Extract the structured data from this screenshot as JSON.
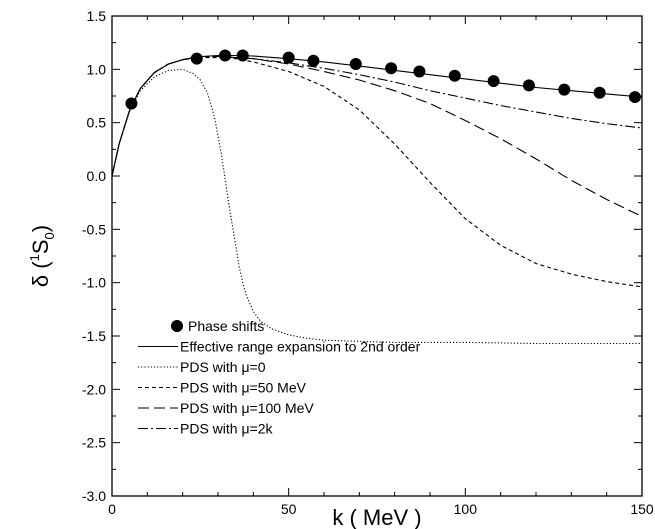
{
  "chart_data": {
    "type": "line",
    "xlabel": "k ( MeV )",
    "ylabel": {
      "main": "δ (",
      "sup": "1",
      "sym": "S",
      "sub": "0",
      "close": ")"
    },
    "xlim": [
      0,
      150
    ],
    "ylim": [
      -3.0,
      1.5
    ],
    "x_ticks": [
      0,
      50,
      100,
      150
    ],
    "x_tick_labels": [
      "0",
      "50",
      "100",
      "150"
    ],
    "y_ticks": [
      -3.0,
      -2.5,
      -2.0,
      -1.5,
      -1.0,
      -0.5,
      0.0,
      0.5,
      1.0,
      1.5
    ],
    "y_tick_labels": [
      "-3.0",
      "-2.5",
      "-2.0",
      "-1.5",
      "-1.0",
      "-0.5",
      "0.0",
      "0.5",
      "1.0",
      "1.5"
    ],
    "grid": false,
    "legend_position": "bottom-left",
    "series": [
      {
        "name": "Phase shifts",
        "kind": "markers",
        "x": [
          5.5,
          24,
          32,
          37,
          50,
          57,
          69,
          79,
          87,
          97,
          108,
          118,
          128,
          138,
          148
        ],
        "y": [
          0.68,
          1.1,
          1.13,
          1.13,
          1.11,
          1.08,
          1.05,
          1.01,
          0.98,
          0.94,
          0.89,
          0.85,
          0.81,
          0.78,
          0.74
        ]
      },
      {
        "name": "Effective range expansion to 2nd order",
        "kind": "line",
        "dash": "solid",
        "x": [
          0,
          2,
          5,
          8,
          12,
          16,
          20,
          25,
          30,
          35,
          40,
          50,
          60,
          70,
          80,
          90,
          100,
          110,
          120,
          130,
          140,
          150
        ],
        "y": [
          0.0,
          0.3,
          0.62,
          0.82,
          0.97,
          1.05,
          1.09,
          1.12,
          1.13,
          1.13,
          1.125,
          1.1,
          1.07,
          1.03,
          0.99,
          0.95,
          0.91,
          0.87,
          0.83,
          0.8,
          0.77,
          0.74
        ]
      },
      {
        "name": "PDS with μ=0",
        "kind": "line",
        "dash": "dotted",
        "x": [
          0,
          2,
          5,
          8,
          12,
          16,
          20,
          23,
          25,
          27,
          29,
          31,
          33,
          34,
          35,
          36,
          37,
          38,
          40,
          42,
          45,
          50,
          55,
          60,
          70,
          80,
          100,
          120,
          150
        ],
        "y": [
          0.0,
          0.3,
          0.61,
          0.8,
          0.93,
          0.99,
          1.0,
          0.96,
          0.9,
          0.78,
          0.55,
          0.2,
          -0.25,
          -0.45,
          -0.65,
          -0.85,
          -1.0,
          -1.12,
          -1.27,
          -1.36,
          -1.43,
          -1.49,
          -1.52,
          -1.54,
          -1.55,
          -1.56,
          -1.56,
          -1.57,
          -1.57
        ]
      },
      {
        "name": "PDS with μ=50 MeV",
        "kind": "line",
        "dash": "short-dash",
        "x": [
          0,
          2,
          5,
          8,
          12,
          16,
          20,
          25,
          30,
          35,
          40,
          50,
          60,
          70,
          80,
          90,
          100,
          110,
          120,
          130,
          140,
          150
        ],
        "y": [
          0.0,
          0.3,
          0.62,
          0.82,
          0.97,
          1.05,
          1.09,
          1.11,
          1.11,
          1.1,
          1.07,
          0.98,
          0.84,
          0.62,
          0.3,
          -0.06,
          -0.4,
          -0.65,
          -0.82,
          -0.92,
          -0.99,
          -1.04
        ]
      },
      {
        "name": "PDS with μ=100 MeV",
        "kind": "line",
        "dash": "long-dash",
        "x": [
          0,
          2,
          5,
          8,
          12,
          16,
          20,
          25,
          30,
          35,
          40,
          50,
          60,
          70,
          80,
          90,
          100,
          110,
          120,
          130,
          140,
          150
        ],
        "y": [
          0.0,
          0.3,
          0.62,
          0.82,
          0.97,
          1.05,
          1.09,
          1.12,
          1.12,
          1.11,
          1.1,
          1.05,
          0.98,
          0.9,
          0.8,
          0.68,
          0.52,
          0.35,
          0.16,
          -0.04,
          -0.22,
          -0.38
        ]
      },
      {
        "name": "PDS with μ=2k",
        "kind": "line",
        "dash": "dash-dot",
        "x": [
          0,
          2,
          5,
          8,
          12,
          16,
          20,
          25,
          30,
          35,
          40,
          50,
          60,
          70,
          80,
          90,
          100,
          110,
          120,
          130,
          140,
          150
        ],
        "y": [
          0.0,
          0.3,
          0.62,
          0.82,
          0.97,
          1.05,
          1.09,
          1.12,
          1.12,
          1.11,
          1.1,
          1.06,
          1.01,
          0.95,
          0.88,
          0.8,
          0.73,
          0.66,
          0.6,
          0.54,
          0.49,
          0.45
        ]
      }
    ]
  }
}
